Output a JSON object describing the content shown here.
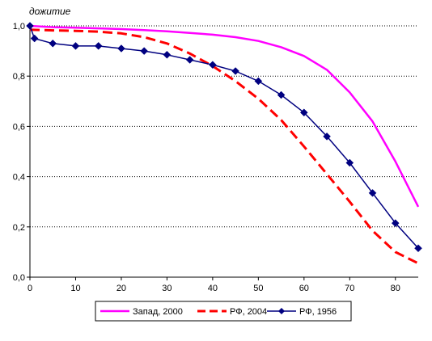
{
  "chart_data": {
    "type": "line",
    "ylabel": "дожитие",
    "xlim": [
      0,
      85
    ],
    "ylim": [
      0,
      1.0
    ],
    "x_ticks": [
      0,
      10,
      20,
      30,
      40,
      50,
      60,
      70,
      80
    ],
    "y_ticks": [
      0,
      0.2,
      0.4,
      0.6,
      0.8,
      1.0
    ],
    "x_tick_labels": [
      "0",
      "10",
      "20",
      "30",
      "40",
      "50",
      "60",
      "70",
      "80"
    ],
    "y_tick_labels": [
      "0,0",
      "0,2",
      "0,4",
      "0,6",
      "0,8",
      "1,0"
    ],
    "grid": "horizontal dotted",
    "legend_position": "bottom",
    "series": [
      {
        "name": "Запад, 2000",
        "color": "#ff00ff",
        "style": "solid",
        "marker": "none",
        "x": [
          0,
          5,
          10,
          15,
          20,
          25,
          30,
          35,
          40,
          45,
          50,
          55,
          60,
          65,
          70,
          75,
          80,
          85
        ],
        "values": [
          1.0,
          0.995,
          0.993,
          0.99,
          0.987,
          0.983,
          0.978,
          0.972,
          0.965,
          0.955,
          0.94,
          0.915,
          0.88,
          0.825,
          0.735,
          0.62,
          0.46,
          0.28
        ]
      },
      {
        "name": "РФ, 2004",
        "color": "#ff0000",
        "style": "dashed",
        "marker": "none",
        "x": [
          0,
          5,
          10,
          15,
          20,
          25,
          30,
          35,
          40,
          45,
          50,
          55,
          60,
          65,
          70,
          75,
          80,
          85
        ],
        "values": [
          0.985,
          0.982,
          0.98,
          0.977,
          0.97,
          0.955,
          0.93,
          0.89,
          0.84,
          0.78,
          0.71,
          0.625,
          0.52,
          0.41,
          0.3,
          0.185,
          0.1,
          0.055
        ]
      },
      {
        "name": "РФ, 1956",
        "color": "#000080",
        "style": "solid",
        "marker": "diamond",
        "x": [
          0,
          1,
          5,
          10,
          15,
          20,
          25,
          30,
          35,
          40,
          45,
          50,
          55,
          60,
          65,
          70,
          75,
          80,
          85
        ],
        "values": [
          1.0,
          0.95,
          0.93,
          0.92,
          0.92,
          0.91,
          0.9,
          0.885,
          0.865,
          0.845,
          0.82,
          0.78,
          0.725,
          0.655,
          0.56,
          0.455,
          0.335,
          0.215,
          0.115
        ]
      }
    ]
  }
}
